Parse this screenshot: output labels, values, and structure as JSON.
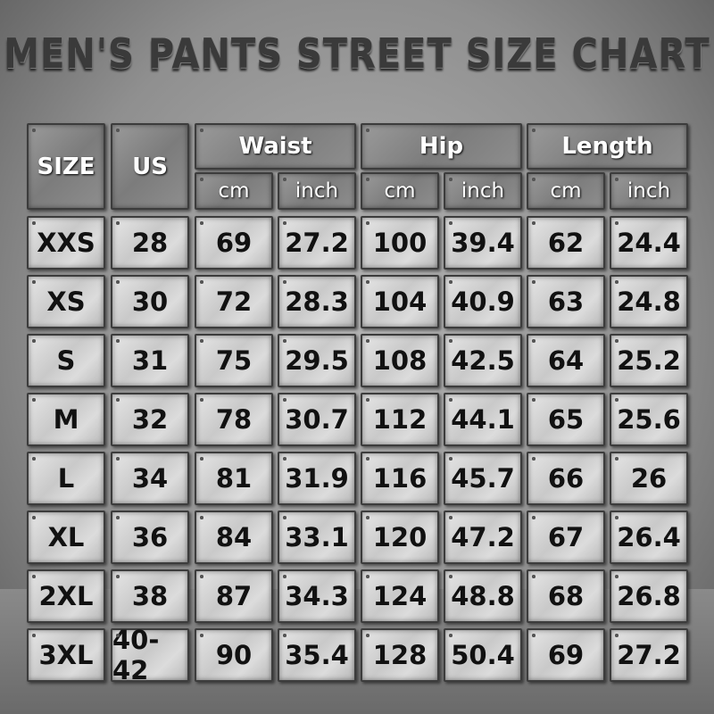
{
  "title": "MEN'S PANTS STREET SIZE CHART",
  "headers": {
    "size": "SIZE",
    "us": "US",
    "groups": [
      "Waist",
      "Hip",
      "Length"
    ],
    "units": [
      "cm",
      "inch",
      "cm",
      "inch",
      "cm",
      "inch"
    ]
  },
  "rows": [
    [
      "XXS",
      "28",
      "69",
      "27.2",
      "100",
      "39.4",
      "62",
      "24.4"
    ],
    [
      "XS",
      "30",
      "72",
      "28.3",
      "104",
      "40.9",
      "63",
      "24.8"
    ],
    [
      "S",
      "31",
      "75",
      "29.5",
      "108",
      "42.5",
      "64",
      "25.2"
    ],
    [
      "M",
      "32",
      "78",
      "30.7",
      "112",
      "44.1",
      "65",
      "25.6"
    ],
    [
      "L",
      "34",
      "81",
      "31.9",
      "116",
      "45.7",
      "66",
      "26"
    ],
    [
      "XL",
      "36",
      "84",
      "33.1",
      "120",
      "47.2",
      "67",
      "26.4"
    ],
    [
      "2XL",
      "38",
      "87",
      "34.3",
      "124",
      "48.8",
      "68",
      "26.8"
    ],
    [
      "3XL",
      "40-42",
      "90",
      "35.4",
      "128",
      "50.4",
      "69",
      "27.2"
    ]
  ]
}
